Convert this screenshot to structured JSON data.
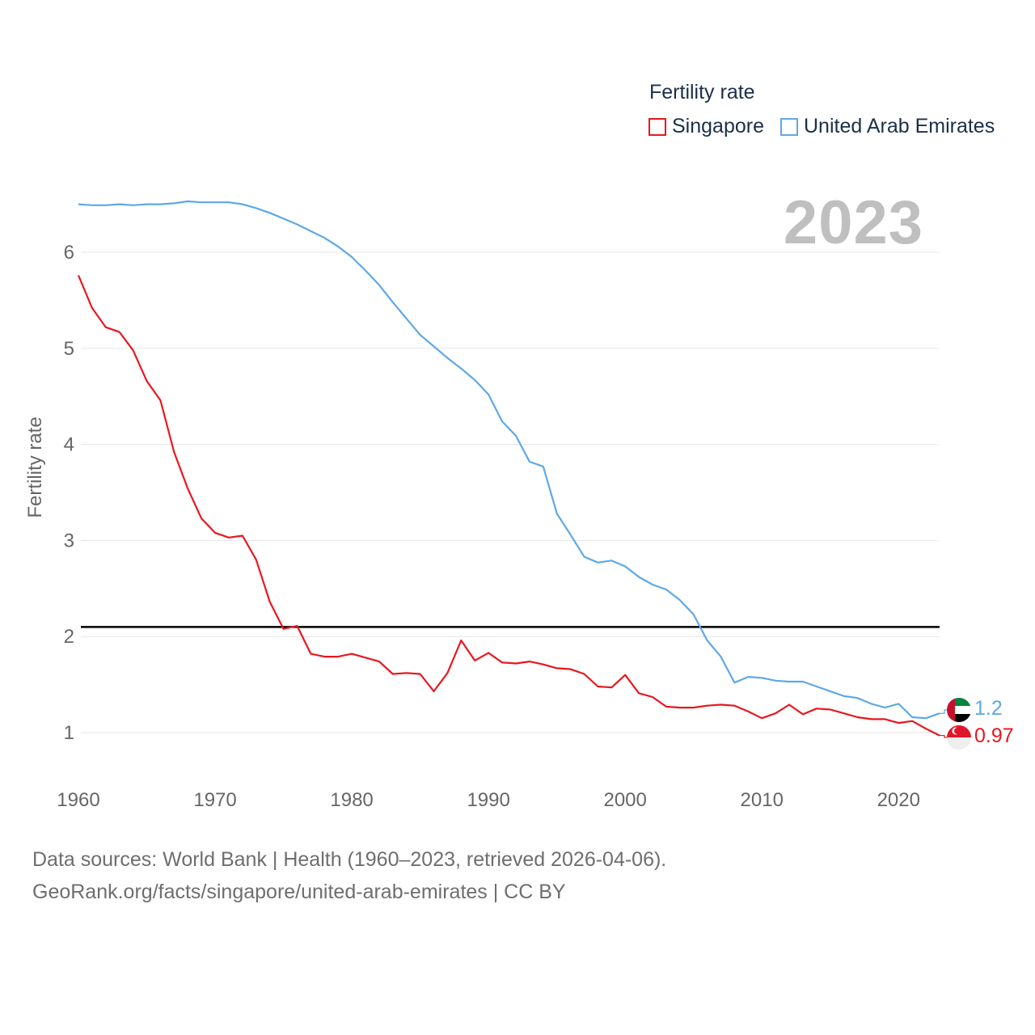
{
  "legend": {
    "title": "Fertility rate",
    "items": [
      {
        "label": "Singapore",
        "color": "#e8171e"
      },
      {
        "label": "United Arab Emirates",
        "color": "#5ea8e8"
      }
    ]
  },
  "year_label": "2023",
  "source": {
    "line1": "Data sources: World Bank | Health (1960–2023, retrieved 2026-04-06).",
    "line2": "GeoRank.org/facts/singapore/united-arab-emirates | CC BY"
  },
  "chart_data": {
    "type": "line",
    "ylabel": "Fertility rate",
    "xlabel": "",
    "xlim": [
      1960,
      2023
    ],
    "ylim": [
      0.5,
      6.6
    ],
    "xticks": [
      1960,
      1970,
      1980,
      1990,
      2000,
      2010,
      2020
    ],
    "yticks": [
      1,
      2,
      3,
      4,
      5,
      6
    ],
    "grid": true,
    "legend_position": "top-right",
    "reference_line": {
      "y": 2.1,
      "color": "#000000"
    },
    "x": [
      1960,
      1961,
      1962,
      1963,
      1964,
      1965,
      1966,
      1967,
      1968,
      1969,
      1970,
      1971,
      1972,
      1973,
      1974,
      1975,
      1976,
      1977,
      1978,
      1979,
      1980,
      1981,
      1982,
      1983,
      1984,
      1985,
      1986,
      1987,
      1988,
      1989,
      1990,
      1991,
      1992,
      1993,
      1994,
      1995,
      1996,
      1997,
      1998,
      1999,
      2000,
      2001,
      2002,
      2003,
      2004,
      2005,
      2006,
      2007,
      2008,
      2009,
      2010,
      2011,
      2012,
      2013,
      2014,
      2015,
      2016,
      2017,
      2018,
      2019,
      2020,
      2021,
      2022,
      2023
    ],
    "series": [
      {
        "name": "Singapore",
        "color": "#e8171e",
        "end_label": "0.97",
        "values": [
          5.76,
          5.42,
          5.22,
          5.17,
          4.98,
          4.66,
          4.46,
          3.92,
          3.54,
          3.23,
          3.08,
          3.03,
          3.05,
          2.8,
          2.36,
          2.08,
          2.11,
          1.82,
          1.79,
          1.79,
          1.82,
          1.78,
          1.74,
          1.61,
          1.62,
          1.61,
          1.43,
          1.62,
          1.96,
          1.75,
          1.83,
          1.73,
          1.72,
          1.74,
          1.71,
          1.67,
          1.66,
          1.61,
          1.48,
          1.47,
          1.6,
          1.41,
          1.37,
          1.27,
          1.26,
          1.26,
          1.28,
          1.29,
          1.28,
          1.22,
          1.15,
          1.2,
          1.29,
          1.19,
          1.25,
          1.24,
          1.2,
          1.16,
          1.14,
          1.14,
          1.1,
          1.12,
          1.04,
          0.97
        ]
      },
      {
        "name": "United Arab Emirates",
        "color": "#5ea8e8",
        "end_label": "1.2",
        "values": [
          6.5,
          6.49,
          6.49,
          6.5,
          6.49,
          6.5,
          6.5,
          6.51,
          6.53,
          6.52,
          6.52,
          6.52,
          6.5,
          6.46,
          6.41,
          6.35,
          6.29,
          6.22,
          6.15,
          6.06,
          5.95,
          5.81,
          5.66,
          5.48,
          5.31,
          5.14,
          5.02,
          4.9,
          4.79,
          4.67,
          4.52,
          4.24,
          4.09,
          3.82,
          3.77,
          3.28,
          3.06,
          2.83,
          2.77,
          2.79,
          2.73,
          2.62,
          2.54,
          2.49,
          2.38,
          2.23,
          1.96,
          1.79,
          1.52,
          1.58,
          1.57,
          1.54,
          1.53,
          1.53,
          1.48,
          1.43,
          1.38,
          1.36,
          1.3,
          1.26,
          1.3,
          1.16,
          1.15,
          1.2
        ]
      }
    ]
  }
}
